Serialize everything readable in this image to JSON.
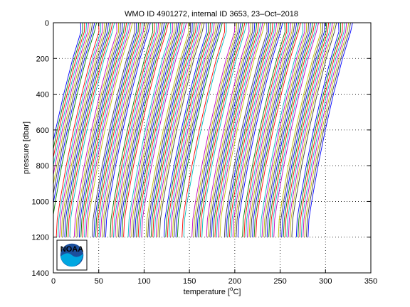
{
  "chart_data": {
    "type": "line",
    "title": "WMO ID 4901272, internal ID 3653, 23–Oct–2018",
    "xlabel_main": "temperature [",
    "xlabel_unit": "C]",
    "xlabel_degree": "o",
    "ylabel": "pressure [dbar]",
    "xlim": [
      0,
      350
    ],
    "ylim": [
      0,
      1400
    ],
    "y_reversed": true,
    "grid": true,
    "grid_style": "dotted",
    "xticks": [
      0,
      50,
      100,
      150,
      200,
      250,
      300,
      350
    ],
    "yticks": [
      0,
      200,
      400,
      600,
      800,
      1000,
      1200,
      1400
    ],
    "profile_pressure": [
      0,
      50,
      100,
      200,
      400,
      600,
      800,
      1000,
      1100,
      1200
    ],
    "profile_shape": [
      0,
      1,
      4,
      10,
      20,
      29,
      37,
      44,
      47,
      48
    ],
    "profile_offset_step": 2.2,
    "profile_groups": [
      {
        "surface_start": 30,
        "count": 74
      },
      {
        "surface_start": 200,
        "count": 60
      }
    ],
    "colors": [
      "#0000ff",
      "#008000",
      "#ff0000",
      "#00bfbf",
      "#bf00bf",
      "#bfbf00",
      "#404040"
    ]
  },
  "logo": {
    "text": "NOAA",
    "colors": {
      "primary": "#1c4f9c",
      "secondary": "#00a7e1"
    }
  }
}
